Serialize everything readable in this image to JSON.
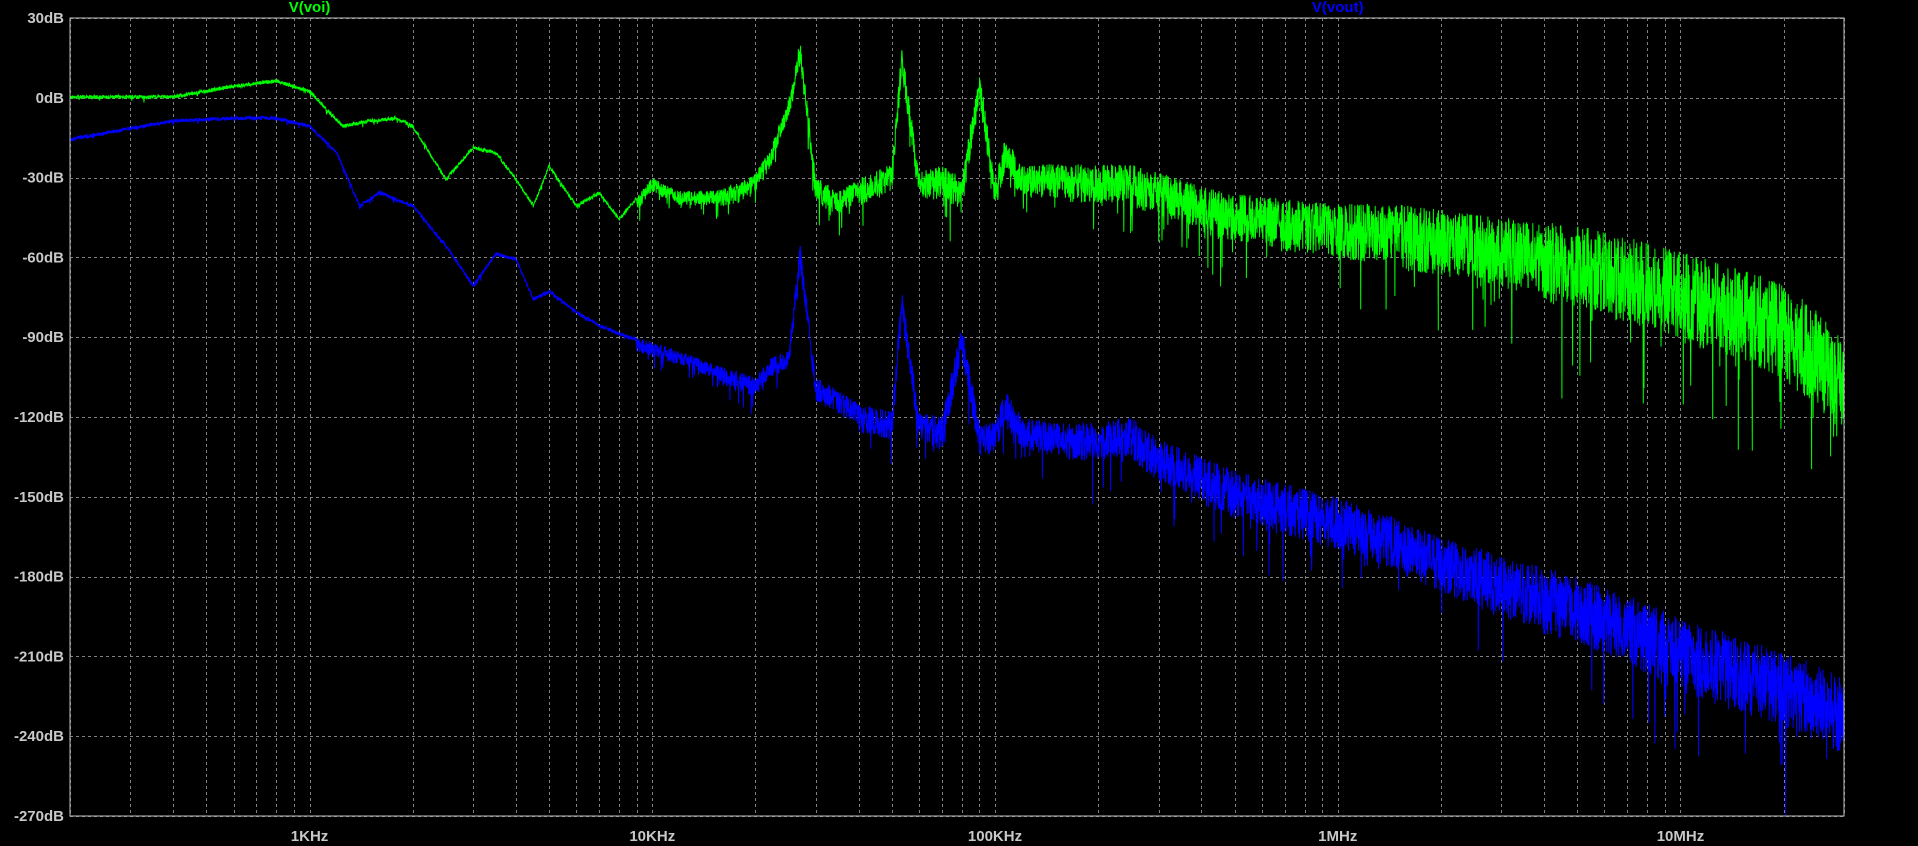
{
  "chart_data": {
    "type": "line",
    "x_scale": "log",
    "xlim": [
      200,
      30000000
    ],
    "ylim": [
      -270,
      30
    ],
    "grid": true,
    "background": "#000000",
    "grid_color": "#808080",
    "tick_color": "#c8c8c8",
    "legend_position": "top",
    "y_ticks": [
      {
        "value": 30,
        "label": "30dB"
      },
      {
        "value": 0,
        "label": "0dB"
      },
      {
        "value": -30,
        "label": "-30dB"
      },
      {
        "value": -60,
        "label": "-60dB"
      },
      {
        "value": -90,
        "label": "-90dB"
      },
      {
        "value": -120,
        "label": "-120dB"
      },
      {
        "value": -150,
        "label": "-150dB"
      },
      {
        "value": -180,
        "label": "-180dB"
      },
      {
        "value": -210,
        "label": "-210dB"
      },
      {
        "value": -240,
        "label": "-240dB"
      },
      {
        "value": -270,
        "label": "-270dB"
      }
    ],
    "x_ticks": [
      {
        "value": 1000,
        "label": "1KHz"
      },
      {
        "value": 10000,
        "label": "10KHz"
      },
      {
        "value": 100000,
        "label": "100KHz"
      },
      {
        "value": 1000000,
        "label": "1MHz"
      },
      {
        "value": 10000000,
        "label": "10MHz"
      }
    ],
    "series": [
      {
        "name": "V(voi)",
        "color": "#00ff00",
        "legend_x": 1000,
        "x": [
          200,
          400,
          600,
          800,
          1000,
          1250,
          1500,
          1800,
          2000,
          2500,
          3000,
          3500,
          4000,
          4500,
          5000,
          6000,
          7000,
          8000,
          10000,
          12000,
          15000,
          18000,
          20000,
          22000,
          25000,
          27000,
          30000,
          35000,
          40000,
          50000,
          53500,
          60000,
          70000,
          80000,
          90000,
          100000,
          107000,
          120000,
          134000,
          150000,
          160000,
          187000,
          200000,
          214000,
          250000,
          300000,
          400000,
          500000,
          700000,
          1000000,
          1500000,
          2000000,
          3000000,
          5000000,
          7000000,
          10000000,
          15000000,
          20000000,
          25000000,
          30000000
        ],
        "values": [
          1,
          1,
          5,
          7,
          3,
          -10,
          -8,
          -7,
          -10,
          -30,
          -18,
          -20,
          -30,
          -40,
          -25,
          -40,
          -35,
          -45,
          -30,
          -35,
          -35,
          -32,
          -28,
          -20,
          0,
          22,
          -30,
          -35,
          -30,
          -25,
          20,
          -28,
          -25,
          -30,
          11,
          -30,
          -15,
          -25,
          -25,
          -25,
          -25,
          -25,
          -25,
          -25,
          -25,
          -28,
          -33,
          -36,
          -38,
          -40,
          -40,
          -42,
          -45,
          -48,
          -52,
          -58,
          -64,
          -70,
          -80,
          -90
        ],
        "band": [
          6,
          8,
          10,
          12,
          14,
          14,
          16,
          18,
          20,
          22,
          24,
          28,
          30,
          34,
          36,
          38,
          40,
          40,
          40,
          40,
          40,
          40,
          40
        ]
      },
      {
        "name": "V(vout)",
        "color": "#0000ff",
        "legend_x": 1000000,
        "x": [
          200,
          400,
          600,
          800,
          1000,
          1200,
          1400,
          1600,
          2000,
          2500,
          3000,
          3500,
          4000,
          4500,
          5000,
          6000,
          7000,
          8000,
          10000,
          12000,
          15000,
          18000,
          20000,
          22000,
          25000,
          27000,
          30000,
          35000,
          40000,
          50000,
          53500,
          60000,
          70000,
          80000,
          90000,
          100000,
          107000,
          120000,
          150000,
          200000,
          250000,
          300000,
          400000,
          500000,
          700000,
          1000000,
          1500000,
          2000000,
          3000000,
          5000000,
          7000000,
          10000000,
          15000000,
          20000000,
          25000000,
          30000000
        ],
        "values": [
          -15,
          -8,
          -7,
          -7,
          -10,
          -20,
          -40,
          -35,
          -40,
          -55,
          -70,
          -58,
          -60,
          -75,
          -72,
          -80,
          -85,
          -88,
          -92,
          -95,
          -100,
          -103,
          -105,
          -98,
          -95,
          -55,
          -105,
          -110,
          -115,
          -118,
          -72,
          -118,
          -120,
          -85,
          -122,
          -122,
          -110,
          -120,
          -122,
          -122,
          -120,
          -128,
          -135,
          -140,
          -145,
          -150,
          -158,
          -165,
          -172,
          -180,
          -187,
          -195,
          -203,
          -208,
          -213,
          -218
        ],
        "band": [
          6,
          8,
          10,
          12,
          14,
          14,
          16,
          18,
          20,
          22,
          22,
          24,
          26,
          28,
          30,
          32,
          32,
          32,
          32,
          32,
          32,
          32,
          32
        ]
      }
    ]
  }
}
